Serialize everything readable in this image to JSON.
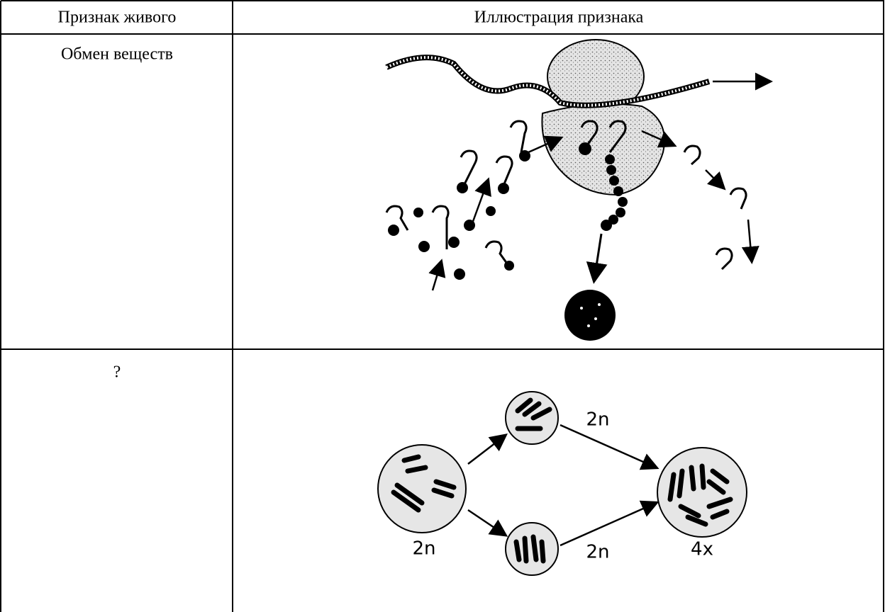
{
  "table": {
    "header": [
      "Признак живого",
      "Иллюстрация признака"
    ],
    "rows": [
      [
        "Обмен веществ"
      ],
      [
        "?"
      ]
    ]
  },
  "illustration": {
    "labels": [
      "2n",
      "2n",
      "2n",
      "4x"
    ]
  }
}
